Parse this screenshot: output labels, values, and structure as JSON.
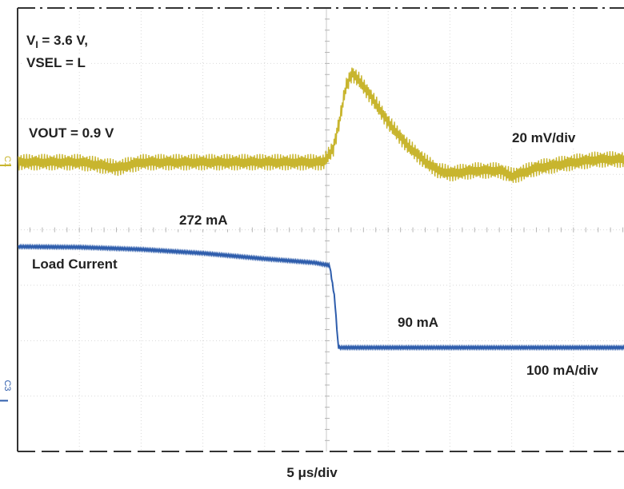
{
  "chart_data": {
    "type": "line",
    "time_scale": "5 μs/div",
    "x_unit": "μs",
    "x_range": [
      -25,
      25
    ],
    "grid": true,
    "annotations": {
      "conditions_line1_prefix": "V",
      "conditions_line1_subscript": "I",
      "conditions_line1_suffix": " = 3.6 V,",
      "conditions_line2": "VSEL = L",
      "vout": "VOUT = 0.9 V",
      "ch1_scale": "20 mV/div",
      "current_high": "272 mA",
      "load_current": "Load Current",
      "current_low": "90 mA",
      "ch3_scale": "100 mA/div"
    },
    "series": [
      {
        "channel": "C1",
        "color": "#c8b52e",
        "unit": "mV",
        "scale_per_div": 20,
        "points": [
          [
            -25,
            0
          ],
          [
            -20,
            0
          ],
          [
            -17,
            -2
          ],
          [
            -15,
            0
          ],
          [
            -10,
            0
          ],
          [
            -5,
            0
          ],
          [
            -0.3,
            0
          ],
          [
            0.5,
            5
          ],
          [
            1,
            15
          ],
          [
            1.5,
            27
          ],
          [
            2,
            32
          ],
          [
            2.5,
            30
          ],
          [
            3.5,
            24
          ],
          [
            5,
            14
          ],
          [
            6.5,
            6
          ],
          [
            8,
            0
          ],
          [
            9,
            -3
          ],
          [
            10,
            -4
          ],
          [
            12,
            -3
          ],
          [
            14,
            -3
          ],
          [
            15,
            -5
          ],
          [
            17,
            -2
          ],
          [
            20,
            0
          ],
          [
            22,
            1
          ],
          [
            25,
            1
          ]
        ],
        "ripple_pp": 6
      },
      {
        "channel": "C3",
        "color": "#2e5dac",
        "unit": "mA",
        "scale_per_div": 100,
        "points": [
          [
            -25,
            272
          ],
          [
            -20,
            271
          ],
          [
            -15,
            267
          ],
          [
            -10,
            260
          ],
          [
            -5,
            250
          ],
          [
            -1,
            243
          ],
          [
            0.2,
            238
          ],
          [
            0.6,
            180
          ],
          [
            0.9,
            90
          ],
          [
            1.2,
            90
          ],
          [
            25,
            90
          ]
        ],
        "noise_pp": 4
      }
    ]
  }
}
